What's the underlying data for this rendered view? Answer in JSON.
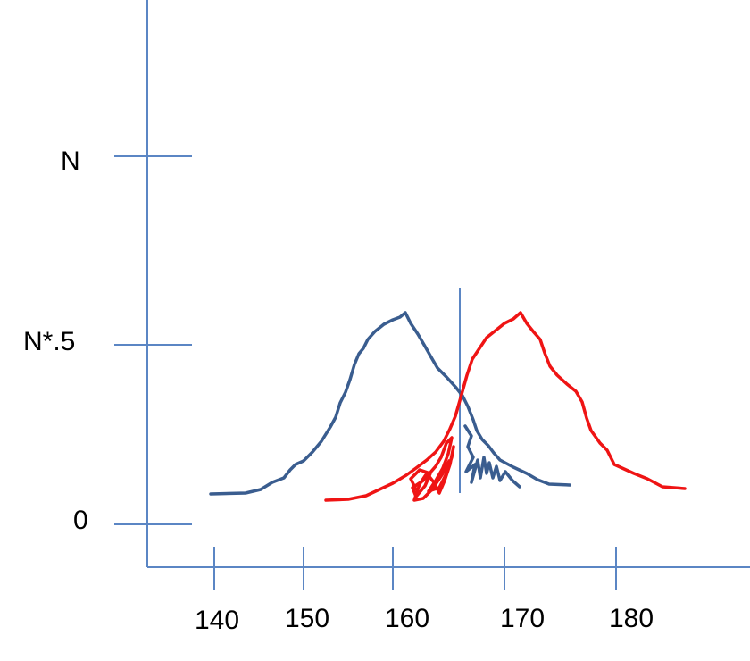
{
  "y_ticks": {
    "top": "N",
    "mid": "N*.5",
    "zero": "0"
  },
  "x_ticks": [
    "140",
    "150",
    "160",
    "170",
    "180"
  ],
  "colors": {
    "axis": "#5b86c4",
    "series_a": "#3a5d8f",
    "series_b": "#ef1414"
  }
}
